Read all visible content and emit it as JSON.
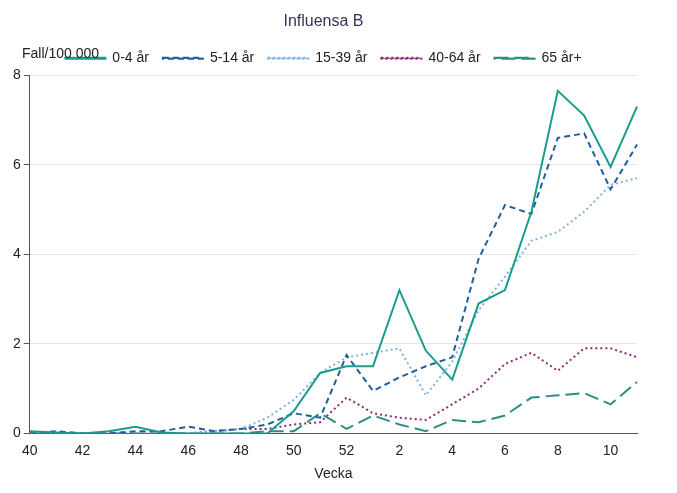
{
  "chart_data": {
    "type": "line",
    "title": "Influensa B",
    "y_label": "Fall/100 000",
    "x_label": "Vecka",
    "categories": [
      "40",
      null,
      "42",
      null,
      "44",
      null,
      "46",
      null,
      "48",
      null,
      "50",
      null,
      "52",
      null,
      "2",
      null,
      "4",
      null,
      "6",
      null,
      "8",
      null,
      "10",
      null
    ],
    "series": [
      {
        "name": "0-4 år",
        "color": "#1a9c8c",
        "line_style": "solid",
        "values": [
          0.05,
          0.02,
          0,
          0.05,
          0.15,
          0.02,
          0,
          0,
          0,
          0,
          0.5,
          1.35,
          1.5,
          1.5,
          3.2,
          1.85,
          1.2,
          2.9,
          3.2,
          4.95,
          7.65,
          7.1,
          5.95,
          7.3
        ]
      },
      {
        "name": "5-14 år",
        "color": "#1f5f9f",
        "line_style": "dashed",
        "values": [
          0,
          0.05,
          0,
          0,
          0.05,
          0.05,
          0.15,
          0.05,
          0.1,
          0.2,
          0.45,
          0.35,
          1.75,
          0.95,
          1.25,
          1.5,
          1.7,
          3.9,
          5.1,
          4.9,
          6.6,
          6.7,
          5.45,
          6.45
        ]
      },
      {
        "name": "15-39 år",
        "color": "#7fb2e5",
        "line_style": "dotted",
        "values": [
          0,
          0,
          0,
          0,
          0,
          0,
          0,
          0.05,
          0.1,
          0.35,
          0.75,
          1.35,
          1.7,
          1.8,
          1.9,
          0.85,
          1.6,
          2.75,
          3.5,
          4.3,
          4.5,
          4.95,
          5.55,
          5.7
        ]
      },
      {
        "name": "40-64 år",
        "color": "#8e2a7a",
        "line_style": "dotted",
        "values": [
          0,
          0,
          0,
          0,
          0,
          0,
          0,
          0.05,
          0.1,
          0.1,
          0.2,
          0.25,
          0.8,
          0.45,
          0.35,
          0.3,
          0.65,
          1.0,
          1.55,
          1.8,
          1.4,
          1.9,
          1.9,
          1.7
        ]
      },
      {
        "name": "65 år+",
        "color": "#2a8f83",
        "line_style": "long_dashed",
        "values": [
          0,
          0,
          0,
          0,
          0,
          0,
          0,
          0,
          0,
          0.05,
          0.05,
          0.45,
          0.1,
          0.4,
          0.2,
          0.05,
          0.3,
          0.25,
          0.4,
          0.8,
          0.85,
          0.9,
          0.65,
          1.15
        ]
      }
    ],
    "ylim": [
      0,
      8
    ],
    "yticks": [
      0,
      2,
      4,
      6,
      8
    ],
    "grid": true,
    "legend": "top"
  }
}
